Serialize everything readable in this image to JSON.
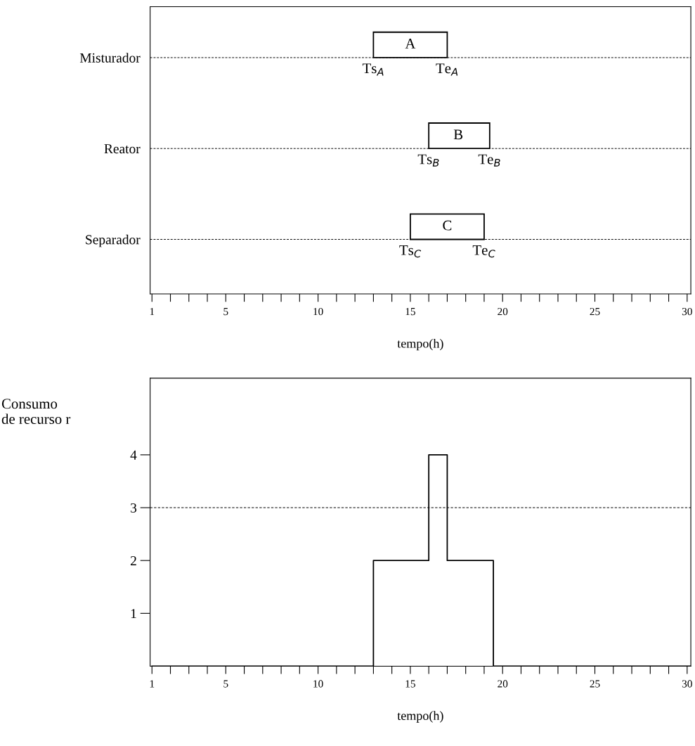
{
  "chart_data": [
    {
      "type": "bar",
      "orientation": "horizontal",
      "categories": [
        "Misturador",
        "Reator",
        "Separador"
      ],
      "base": [
        13,
        16,
        15
      ],
      "values": [
        4,
        3.3,
        4
      ],
      "color": "#ffffff",
      "xlabel": "tempo(h)",
      "xlim": [
        0.9,
        30.2
      ],
      "grid": "y",
      "xticks": [
        1,
        {
          "value": 2,
          "label": null
        },
        {
          "value": 3,
          "label": null
        },
        {
          "value": 4,
          "label": null
        },
        5,
        {
          "value": 6,
          "label": null
        },
        {
          "value": 7,
          "label": null
        },
        {
          "value": 8,
          "label": null
        },
        {
          "value": 9,
          "label": null
        },
        10,
        {
          "value": 11,
          "label": null
        },
        {
          "value": 12,
          "label": null
        },
        {
          "value": 13,
          "label": null
        },
        {
          "value": 14,
          "label": null
        },
        15,
        {
          "value": 16,
          "label": null
        },
        {
          "value": 17,
          "label": null
        },
        {
          "value": 18,
          "label": null
        },
        {
          "value": 19,
          "label": null
        },
        20,
        {
          "value": 21,
          "label": null
        },
        {
          "value": 22,
          "label": null
        },
        {
          "value": 23,
          "label": null
        },
        {
          "value": 24,
          "label": null
        },
        25,
        {
          "value": 26,
          "label": null
        },
        {
          "value": 27,
          "label": null
        },
        {
          "value": 28,
          "label": null
        },
        {
          "value": 29,
          "label": null
        },
        30
      ],
      "annotations": [
        {
          "text": "A",
          "x": 15,
          "y": "Misturador"
        },
        {
          "text": "Ts$_{A}$",
          "x": 13,
          "y": "Misturador"
        },
        {
          "text": "Te$_{A}$",
          "x": 17,
          "y": "Misturador"
        },
        {
          "text": "B",
          "x": 17.6,
          "y": "Reator"
        },
        {
          "text": "Ts$_{B}$",
          "x": 16,
          "y": "Reator"
        },
        {
          "text": "Te$_{B}$",
          "x": 19.3,
          "y": "Reator"
        },
        {
          "text": "C",
          "x": 17,
          "y": "Separador"
        },
        {
          "text": "Ts$_{C}$",
          "x": 15,
          "y": "Separador"
        },
        {
          "text": "Te$_{C}$",
          "x": 19,
          "y": "Separador"
        }
      ]
    },
    {
      "type": "step",
      "x": [
        1,
        13,
        16,
        17,
        19.5,
        30.2
      ],
      "values": [
        0,
        2,
        4,
        2,
        0,
        0
      ],
      "color": "#000000",
      "xlabel": "tempo(h)",
      "ylabel": "Consumo\nde recurso r",
      "xlim": [
        0.9,
        30.2
      ],
      "ylim": [
        0,
        5.45
      ],
      "yticks": [
        1,
        2,
        3,
        4
      ],
      "ref_lines": [
        {
          "axis": "y",
          "value": 3,
          "color": "#000000",
          "line_style": "dashed"
        }
      ],
      "xticks": [
        1,
        {
          "value": 2,
          "label": null
        },
        {
          "value": 3,
          "label": null
        },
        {
          "value": 4,
          "label": null
        },
        5,
        {
          "value": 6,
          "label": null
        },
        {
          "value": 7,
          "label": null
        },
        {
          "value": 8,
          "label": null
        },
        {
          "value": 9,
          "label": null
        },
        10,
        {
          "value": 11,
          "label": null
        },
        {
          "value": 12,
          "label": null
        },
        {
          "value": 13,
          "label": null
        },
        {
          "value": 14,
          "label": null
        },
        15,
        {
          "value": 16,
          "label": null
        },
        {
          "value": 17,
          "label": null
        },
        {
          "value": 18,
          "label": null
        },
        {
          "value": 19,
          "label": null
        },
        20,
        {
          "value": 21,
          "label": null
        },
        {
          "value": 22,
          "label": null
        },
        {
          "value": 23,
          "label": null
        },
        {
          "value": 24,
          "label": null
        },
        25,
        {
          "value": 26,
          "label": null
        },
        {
          "value": 27,
          "label": null
        },
        {
          "value": 28,
          "label": null
        },
        {
          "value": 29,
          "label": null
        },
        30
      ]
    }
  ]
}
